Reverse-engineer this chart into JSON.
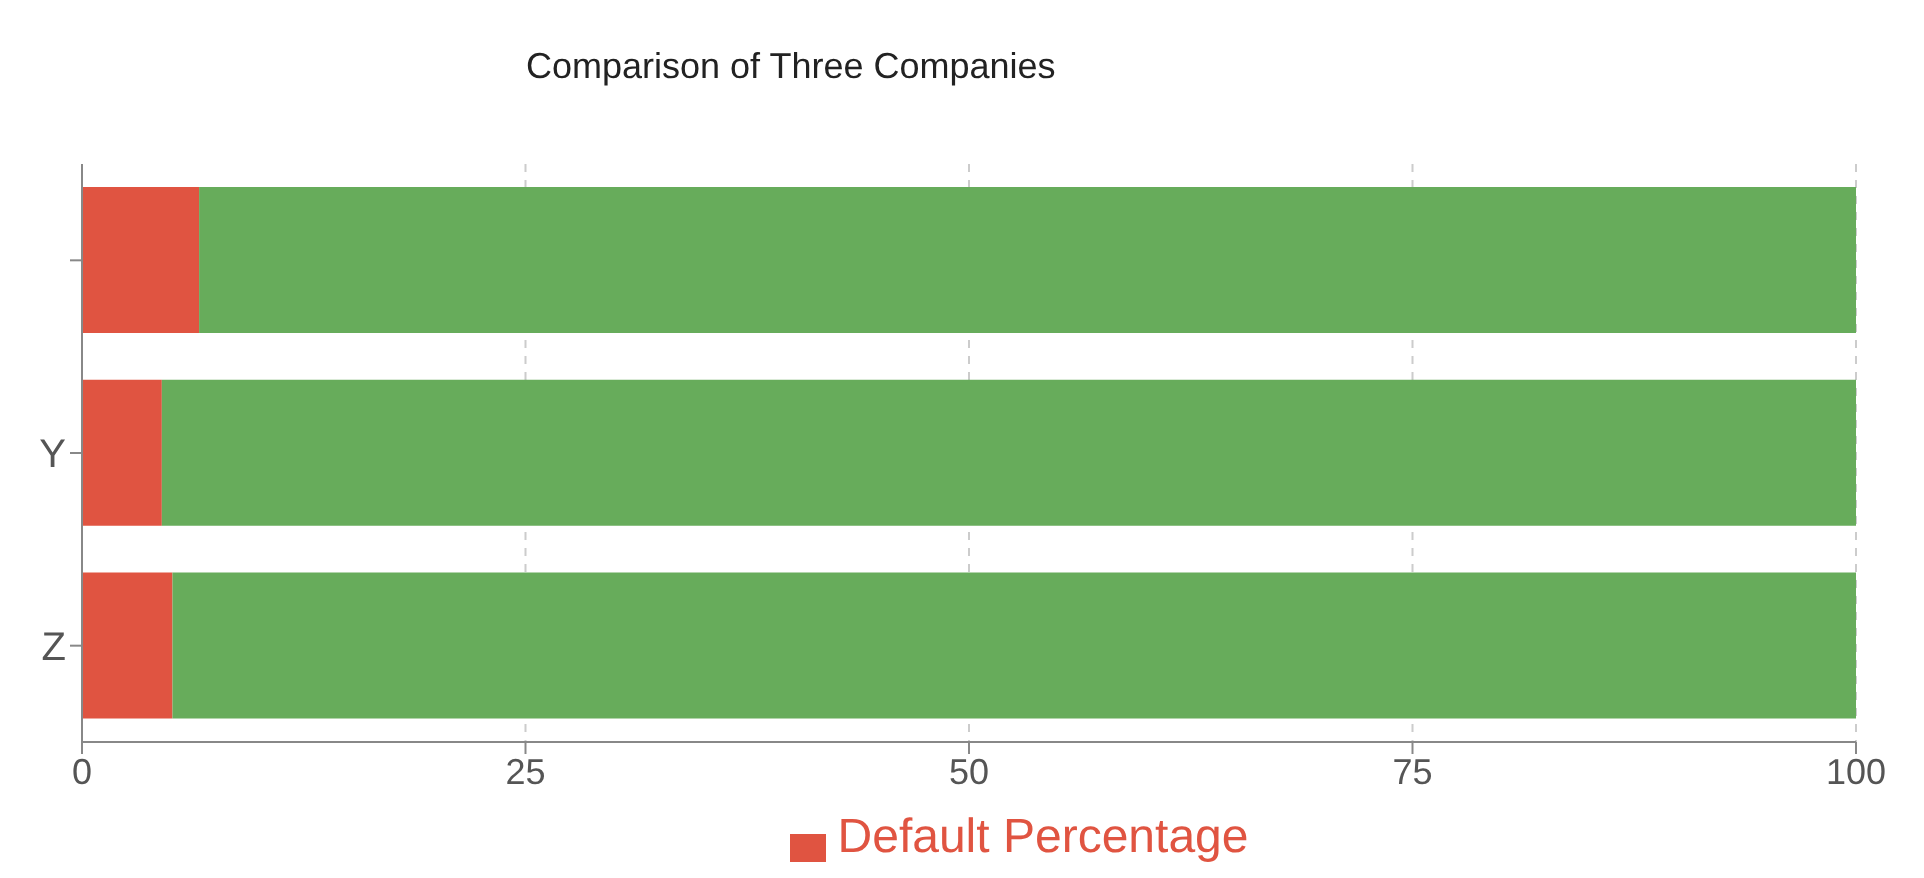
{
  "chart_data": {
    "type": "bar",
    "orientation": "horizontal",
    "stacked": true,
    "title": "Comparison of Three Companies",
    "categories": [
      null,
      "Y",
      "Z"
    ],
    "series": [
      {
        "name": "Default Percentage",
        "color": "#e05441",
        "values": [
          6.6,
          4.5,
          5.1
        ]
      },
      {
        "color": "#67ac5b",
        "values": [
          93.4,
          95.5,
          94.9
        ]
      }
    ],
    "xlim": [
      0,
      100
    ],
    "xticks": [
      0,
      25,
      50,
      75,
      100
    ],
    "grid": "x",
    "legend": "bottom"
  }
}
